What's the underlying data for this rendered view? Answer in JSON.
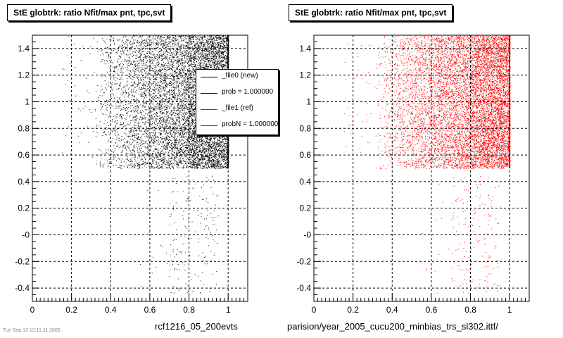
{
  "chart_data": [
    {
      "type": "scatter",
      "title": "StE globtrk: ratio Nfit/max pnt, tpc,svt",
      "xlabel": "rcf1216_05_200evts",
      "ylabel": "",
      "xlim": [
        0,
        1.1
      ],
      "ylim": [
        -0.5,
        1.5
      ],
      "xticks": [
        "0",
        "0.2",
        "0.4",
        "0.6",
        "0.8",
        "1"
      ],
      "yticks": [
        "-0.4",
        "-0.2",
        "-0",
        "0.2",
        "0.4",
        "0.6",
        "0.8",
        "1",
        "1.2",
        "1.4"
      ],
      "grid": true,
      "marker_color": "#000000",
      "dense_region": {
        "x": [
          0.3,
          1.0
        ],
        "y": [
          0.5,
          1.5
        ]
      },
      "sparse_region": {
        "x": [
          0.7,
          0.95
        ],
        "y": [
          -0.45,
          0.45
        ]
      },
      "legend": {
        "placement": "top-right",
        "entries": [
          {
            "label": "_file0 (new)",
            "color": "#000000"
          },
          {
            "label": "prob = 1.000000",
            "color": "#000000"
          },
          {
            "label": "_file1 (ref)",
            "color": "#ff0000"
          },
          {
            "label": "probN = 1.000000",
            "color": "#ff0000"
          }
        ]
      }
    },
    {
      "type": "scatter",
      "title": "StE globtrk: ratio Nfit/max pnt, tpc,svt",
      "xlabel": "parision/year_2005_cucu200_minbias_trs_sl302.ittf/",
      "ylabel": "",
      "xlim": [
        0,
        1.1
      ],
      "ylim": [
        -0.5,
        1.5
      ],
      "xticks": [
        "0",
        "0.2",
        "0.4",
        "0.6",
        "0.8",
        "1"
      ],
      "yticks": [
        "-0.4",
        "-0.2",
        "-0",
        "0.2",
        "0.4",
        "0.6",
        "0.8",
        "1",
        "1.2",
        "1.4"
      ],
      "grid": true,
      "marker_color": "#ff0000",
      "dense_region": {
        "x": [
          0.3,
          1.0
        ],
        "y": [
          0.5,
          1.5
        ]
      },
      "sparse_region": {
        "x": [
          0.7,
          0.95
        ],
        "y": [
          -0.45,
          0.45
        ]
      }
    }
  ],
  "footer": "Tue Sep 13 12:11:11 2005"
}
